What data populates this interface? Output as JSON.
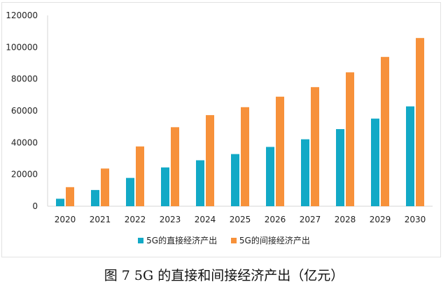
{
  "chart_data": {
    "type": "bar",
    "title": "",
    "xlabel": "",
    "ylabel": "",
    "ylim": [
      0,
      120000
    ],
    "yticks": [
      "0",
      "20000",
      "40000",
      "60000",
      "80000",
      "100000",
      "120000"
    ],
    "grid": false,
    "legend_position": "bottom",
    "categories": [
      "2020",
      "2021",
      "2022",
      "2023",
      "2024",
      "2025",
      "2026",
      "2027",
      "2028",
      "2029",
      "2030"
    ],
    "series": [
      {
        "name": "5G的直接经济产出",
        "color": "#12a9c6",
        "values": [
          4700,
          10200,
          17800,
          24400,
          28900,
          32800,
          37300,
          42100,
          48500,
          55100,
          62800
        ]
      },
      {
        "name": "5G的间接经济产出",
        "color": "#f7913a",
        "values": [
          12000,
          23700,
          37600,
          49700,
          57300,
          62300,
          68900,
          74900,
          84200,
          93900,
          105800
        ]
      }
    ]
  },
  "caption": "图 7 5G 的直接和间接经济产出（亿元）"
}
